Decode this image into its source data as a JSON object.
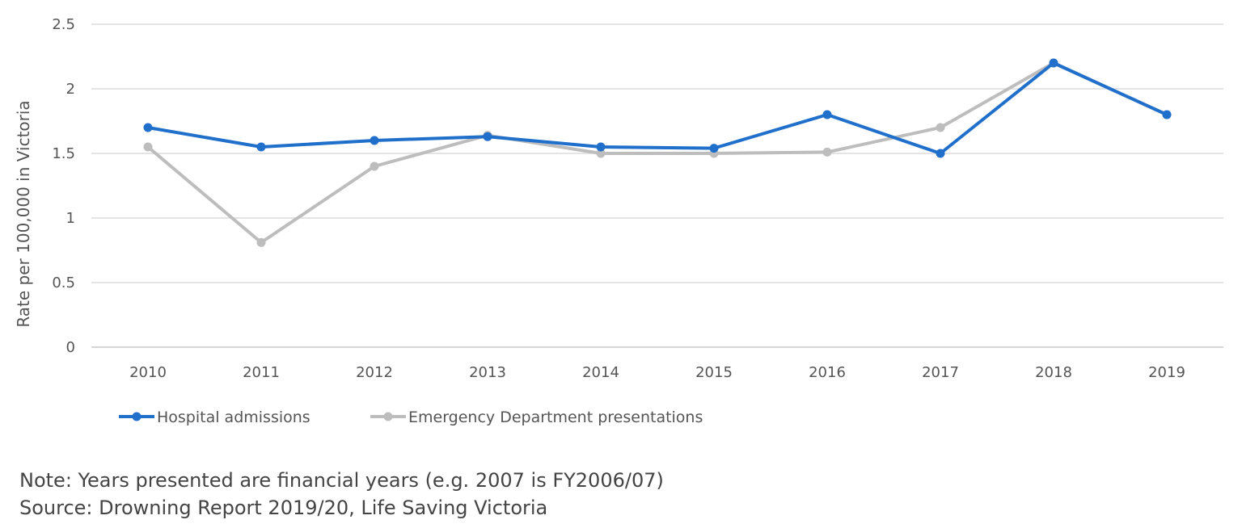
{
  "chart_data": {
    "type": "line",
    "title": "",
    "xlabel": "",
    "ylabel": "Rate per 100,000 in Victoria",
    "categories": [
      "2010",
      "2011",
      "2012",
      "2013",
      "2014",
      "2015",
      "2016",
      "2017",
      "2018",
      "2019"
    ],
    "series": [
      {
        "name": "Hospital admissions",
        "color": "#1f6fcb",
        "values": [
          1.7,
          1.55,
          1.6,
          1.63,
          1.55,
          1.54,
          1.8,
          1.5,
          2.2,
          1.8
        ]
      },
      {
        "name": "Emergency Department presentations",
        "color": "#bdbdbd",
        "values": [
          1.55,
          0.81,
          1.4,
          1.64,
          1.5,
          1.5,
          1.51,
          1.7,
          2.2,
          1.8
        ]
      }
    ],
    "ylim": [
      0,
      2.5
    ],
    "yticks": [
      "0",
      "0.5",
      "1",
      "1.5",
      "2",
      "2.5"
    ],
    "grid": true,
    "legend_position": "bottom-left"
  },
  "notes": {
    "line1": "Note: Years presented are financial years (e.g. 2007 is FY2006/07)",
    "line2": "Source: Drowning Report 2019/20, Life Saving Victoria"
  }
}
